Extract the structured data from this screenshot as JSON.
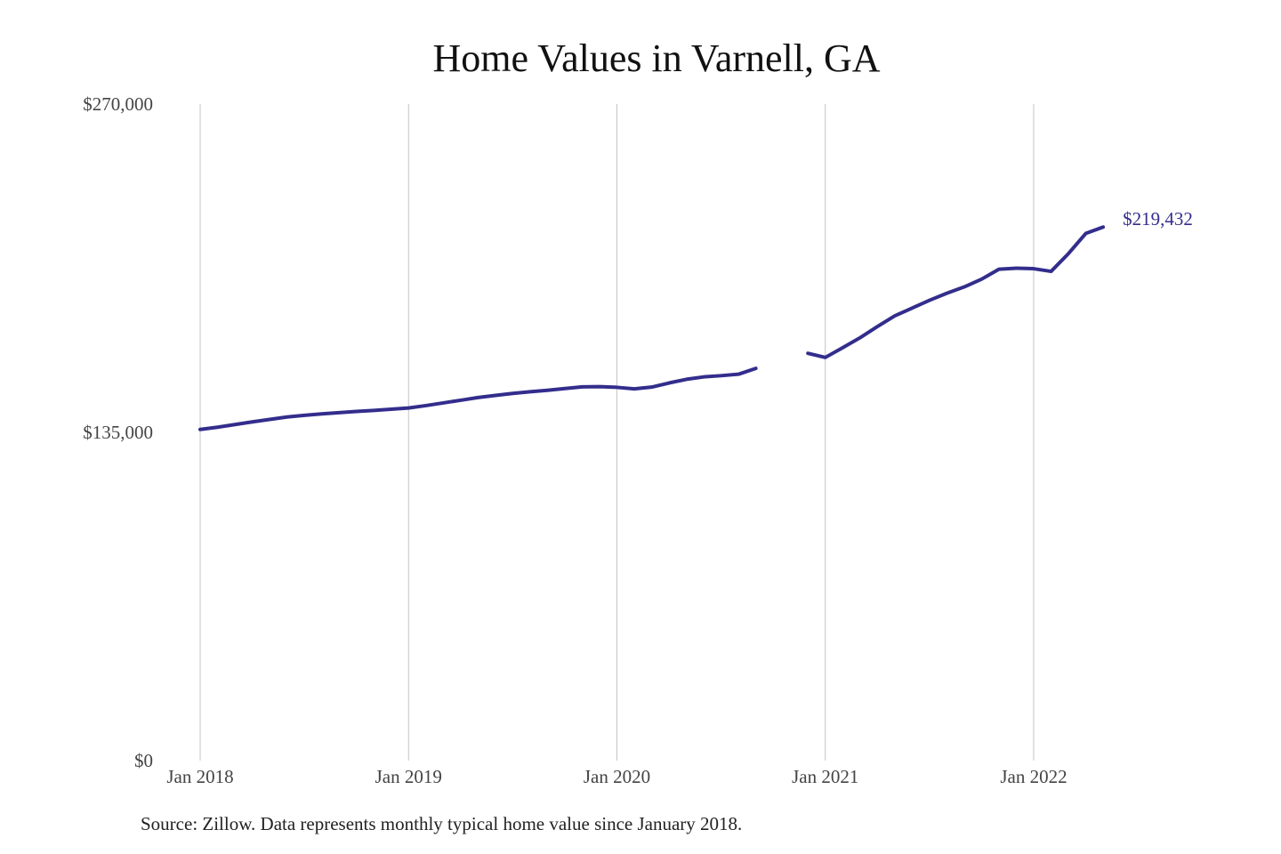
{
  "chart_data": {
    "type": "line",
    "title": "Home Values in Varnell, GA",
    "xlabel": "",
    "ylabel": "",
    "x_unit": "month",
    "ylim": [
      0,
      270000
    ],
    "y_ticks": [
      "$0",
      "$135,000",
      "$270,000"
    ],
    "y_tick_values": [
      0,
      135000,
      270000
    ],
    "x_ticks": [
      "Jan 2018",
      "Jan 2019",
      "Jan 2020",
      "Jan 2021",
      "Jan 2022"
    ],
    "x_tick_dates": [
      "2018-01",
      "2019-01",
      "2020-01",
      "2021-01",
      "2022-01"
    ],
    "grid": "vertical lines at x ticks",
    "line_color": "#332d8c",
    "end_label": "$219,432",
    "series": [
      {
        "segments": [
          {
            "x": [
              "2018-01",
              "2018-02",
              "2018-03",
              "2018-04",
              "2018-05",
              "2018-06",
              "2018-07",
              "2018-08",
              "2018-09",
              "2018-10",
              "2018-11",
              "2018-12",
              "2019-01",
              "2019-02",
              "2019-03",
              "2019-04",
              "2019-05",
              "2019-06",
              "2019-07",
              "2019-08",
              "2019-09",
              "2019-10",
              "2019-11",
              "2019-12",
              "2020-01",
              "2020-02",
              "2020-03",
              "2020-04",
              "2020-05",
              "2020-06",
              "2020-07",
              "2020-08",
              "2020-09"
            ],
            "y": [
              136200,
              137100,
              138200,
              139300,
              140300,
              141300,
              142000,
              142600,
              143100,
              143600,
              144000,
              144500,
              145000,
              146000,
              147100,
              148200,
              149300,
              150200,
              151000,
              151700,
              152300,
              153000,
              153700,
              153800,
              153500,
              152900,
              153600,
              155300,
              156800,
              157800,
              158300,
              158900,
              161300
            ]
          },
          {
            "x": [
              "2020-12",
              "2021-01",
              "2021-02",
              "2021-03",
              "2021-04",
              "2021-05",
              "2021-06",
              "2021-07",
              "2021-08",
              "2021-09",
              "2021-10",
              "2021-11",
              "2021-12",
              "2022-01",
              "2022-02",
              "2022-03",
              "2022-04",
              "2022-05"
            ],
            "y": [
              167500,
              165800,
              169800,
              173900,
              178500,
              182900,
              186100,
              189300,
              192200,
              194800,
              198000,
              202100,
              202500,
              202300,
              201200,
              208500,
              216800,
              219432
            ]
          }
        ]
      }
    ]
  },
  "source_note": "Source: Zillow. Data represents monthly typical home value since January 2018."
}
